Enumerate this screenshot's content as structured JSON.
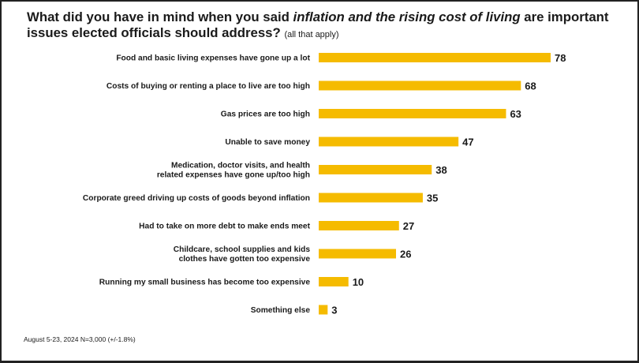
{
  "title": {
    "part1": "What did you have in mind when you said ",
    "italic": "inflation and the rising cost of living",
    "part2": " are important issues elected officials should address?",
    "note": "(all that apply)"
  },
  "footnote": "August 5-23, 2024   N=3,000 (+/-1.8%)",
  "colors": {
    "bar": "#f5bb00",
    "text": "#1a1a1a"
  },
  "chart_data": {
    "type": "bar",
    "orientation": "horizontal",
    "title": "What did you have in mind when you said inflation and the rising cost of living are important issues elected officials should address? (all that apply)",
    "categories": [
      [
        "Food and basic living expenses have gone up a lot"
      ],
      [
        "Costs of buying or renting a place to live are too high"
      ],
      [
        "Gas prices are too high"
      ],
      [
        "Unable to save money"
      ],
      [
        "Medication, doctor visits, and health",
        "related expenses have gone up/too high"
      ],
      [
        "Corporate greed driving up costs of goods beyond inflation"
      ],
      [
        "Had to take on more debt to make ends meet"
      ],
      [
        "Childcare, school supplies and kids",
        "clothes have gotten too expensive"
      ],
      [
        "Running my small business has become too expensive"
      ],
      [
        "Something else"
      ]
    ],
    "values": [
      78,
      68,
      63,
      47,
      38,
      35,
      27,
      26,
      10,
      3
    ],
    "xlim": [
      0,
      78
    ],
    "grid": false,
    "legend": "none"
  }
}
